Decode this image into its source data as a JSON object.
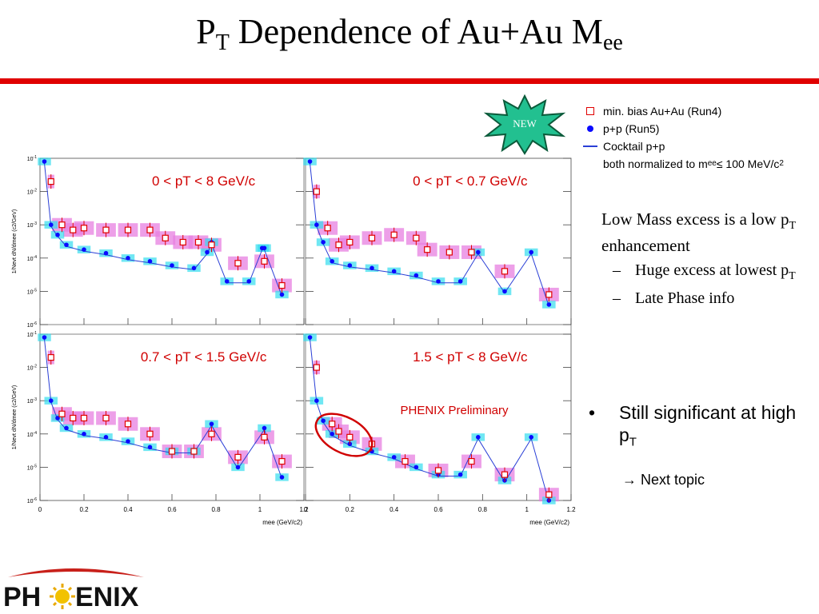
{
  "title": {
    "main": "P",
    "sub1": "T",
    "rest": " Dependence of Au+Au M",
    "sub2": "ee"
  },
  "colors": {
    "accent_red": "#e00000",
    "data_red": "#e00000",
    "data_blue": "#0a0aff",
    "cocktail": "#2a3fd6",
    "box_magenta": "#e77fe0",
    "box_cyan": "#33ddee"
  },
  "legend": {
    "items": [
      {
        "label": "min. bias Au+Au (Run4)",
        "symbol": "open-square-red"
      },
      {
        "label": "p+p (Run5)",
        "symbol": "filled-circle-blue"
      },
      {
        "label": "Cocktail p+p",
        "symbol": "line-blue"
      }
    ],
    "note": "both normalized to m",
    "note_sub": "ee",
    "note_rest": " ≤ 100 MeV/c",
    "note_sup": "2"
  },
  "new_badge": "NEW",
  "right_text": {
    "line1": "Low Mass excess is a low p",
    "line1_sub": "T",
    "line1_rest": " enhancement",
    "items": [
      {
        "text": "Huge excess at lowest p",
        "sub": "T"
      },
      {
        "text": "Late Phase info",
        "sub": ""
      }
    ]
  },
  "bullet": {
    "text": "Still significant at high p",
    "sub": "T"
  },
  "next_topic": "→ Next topic",
  "logo": {
    "text": "PH",
    "text2": "ENIX"
  },
  "chart_data": [
    {
      "type": "scatter",
      "panel": "top-left",
      "label": "0 < pT < 8 GeV/c",
      "xlabel": "m_ee (GeV/c²)",
      "ylabel": "1/N_evt dN/dm_ee (c²/GeV)",
      "yscale": "log",
      "ylim": [
        1e-06,
        0.1
      ],
      "xlim": [
        0,
        1.2
      ],
      "series": [
        {
          "name": "min. bias Au+Au (Run4)",
          "x": [
            0.05,
            0.1,
            0.15,
            0.2,
            0.3,
            0.4,
            0.5,
            0.57,
            0.65,
            0.72,
            0.78,
            0.9,
            1.02,
            1.1
          ],
          "y": [
            0.02,
            0.001,
            0.0007,
            0.0008,
            0.0007,
            0.0007,
            0.0007,
            0.0004,
            0.0003,
            0.0003,
            0.00025,
            7e-05,
            8e-05,
            1.5e-05
          ]
        },
        {
          "name": "p+p (Run5)",
          "x": [
            0.02,
            0.05,
            0.08,
            0.12,
            0.2,
            0.3,
            0.4,
            0.5,
            0.6,
            0.7,
            0.76,
            0.78,
            0.85,
            0.95,
            1.01,
            1.02,
            1.1
          ],
          "y": [
            0.08,
            0.001,
            0.0005,
            0.00025,
            0.00018,
            0.00014,
            0.0001,
            8e-05,
            6e-05,
            5e-05,
            0.00015,
            0.0003,
            2e-05,
            2e-05,
            0.0002,
            0.0002,
            8e-06
          ]
        }
      ]
    },
    {
      "type": "scatter",
      "panel": "top-right",
      "label": "0 < pT < 0.7 GeV/c",
      "xlabel": "m_ee (GeV/c²)",
      "ylabel": "",
      "yscale": "log",
      "ylim": [
        1e-06,
        0.1
      ],
      "xlim": [
        0,
        1.2
      ],
      "series": [
        {
          "name": "min. bias Au+Au (Run4)",
          "x": [
            0.05,
            0.1,
            0.15,
            0.2,
            0.3,
            0.4,
            0.5,
            0.55,
            0.65,
            0.75,
            0.9,
            1.1
          ],
          "y": [
            0.01,
            0.0008,
            0.00025,
            0.0003,
            0.0004,
            0.0005,
            0.0004,
            0.00018,
            0.00015,
            0.00015,
            4e-05,
            8e-06
          ]
        },
        {
          "name": "p+p (Run5)",
          "x": [
            0.02,
            0.05,
            0.08,
            0.12,
            0.2,
            0.3,
            0.4,
            0.5,
            0.6,
            0.7,
            0.78,
            0.9,
            1.02,
            1.1
          ],
          "y": [
            0.08,
            0.001,
            0.0003,
            8e-05,
            6e-05,
            5e-05,
            4e-05,
            3e-05,
            2e-05,
            2e-05,
            0.00015,
            1e-05,
            0.00015,
            4e-06
          ]
        }
      ]
    },
    {
      "type": "scatter",
      "panel": "bottom-left",
      "label": "0.7 < pT < 1.5 GeV/c",
      "xlabel": "m_ee (GeV/c²)",
      "ylabel": "1/N_evt dN/dm_ee (c²/GeV)",
      "yscale": "log",
      "ylim": [
        1e-06,
        0.1
      ],
      "xlim": [
        0,
        1.2
      ],
      "series": [
        {
          "name": "min. bias Au+Au (Run4)",
          "x": [
            0.05,
            0.1,
            0.15,
            0.2,
            0.3,
            0.4,
            0.5,
            0.6,
            0.7,
            0.78,
            0.9,
            1.02,
            1.1
          ],
          "y": [
            0.02,
            0.0004,
            0.0003,
            0.0003,
            0.0003,
            0.0002,
            0.0001,
            3e-05,
            3e-05,
            0.0001,
            2e-05,
            8e-05,
            1.5e-05
          ]
        },
        {
          "name": "p+p (Run5)",
          "x": [
            0.02,
            0.05,
            0.08,
            0.12,
            0.2,
            0.3,
            0.4,
            0.5,
            0.6,
            0.7,
            0.78,
            0.9,
            1.02,
            1.1
          ],
          "y": [
            0.08,
            0.001,
            0.0003,
            0.00015,
            0.0001,
            8e-05,
            6e-05,
            4e-05,
            3e-05,
            3e-05,
            0.0002,
            1e-05,
            0.00015,
            5e-06
          ]
        }
      ]
    },
    {
      "type": "scatter",
      "panel": "bottom-right",
      "label": "1.5 < pT < 8 GeV/c",
      "xlabel": "m_ee (GeV/c²)",
      "ylabel": "",
      "yscale": "log",
      "ylim": [
        1e-06,
        0.1
      ],
      "xlim": [
        0,
        1.2
      ],
      "series": [
        {
          "name": "min. bias Au+Au (Run4)",
          "x": [
            0.05,
            0.12,
            0.15,
            0.2,
            0.3,
            0.45,
            0.6,
            0.75,
            0.9,
            1.1
          ],
          "y": [
            0.01,
            0.0002,
            0.00012,
            8e-05,
            5e-05,
            1.5e-05,
            8e-06,
            1.5e-05,
            6e-06,
            1.5e-06
          ]
        },
        {
          "name": "p+p (Run5)",
          "x": [
            0.02,
            0.05,
            0.08,
            0.12,
            0.2,
            0.3,
            0.4,
            0.5,
            0.6,
            0.7,
            0.78,
            0.9,
            1.02,
            1.1
          ],
          "y": [
            0.08,
            0.001,
            0.00025,
            0.0001,
            5e-05,
            3e-05,
            2e-05,
            1e-05,
            6e-06,
            6e-06,
            8e-05,
            4e-06,
            8e-05,
            1e-06
          ]
        }
      ]
    }
  ],
  "annotation": "PHENIX Preliminary",
  "axes": {
    "xticks": [
      "0",
      "0.2",
      "0.4",
      "0.6",
      "0.8",
      "1",
      "1.2"
    ],
    "yticks_exp": [
      "-1",
      "-2",
      "-3",
      "-4",
      "-5",
      "-6"
    ],
    "xlabel": "m",
    "xlabel_sub": "ee",
    "xlabel_rest": " (GeV/c",
    "xlabel_sup": "2",
    "xlabel_end": ")",
    "ylabel": "1/N",
    "ylabel_sub": "evt",
    "ylabel_mid": " dN/dm",
    "ylabel_sub2": "ee",
    "ylabel_rest": " (c",
    "ylabel_sup": "2",
    "ylabel_end": "/GeV)"
  }
}
